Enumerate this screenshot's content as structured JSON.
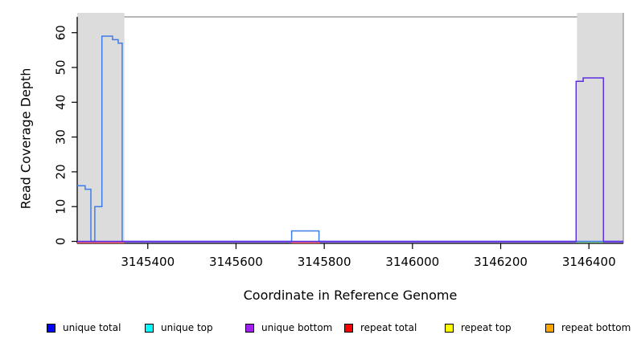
{
  "chart_data": {
    "type": "line",
    "step": true,
    "title": "",
    "xlabel": "Coordinate in Reference Genome",
    "ylabel": "Read Coverage Depth",
    "xlim": [
      3145240,
      3146478
    ],
    "ylim": [
      0,
      60
    ],
    "x_ticks": [
      3145400,
      3145600,
      3145800,
      3146000,
      3146200,
      3146400
    ],
    "y_ticks": [
      0,
      10,
      20,
      30,
      40,
      50,
      60
    ],
    "grid": false,
    "legend_position": "bottom",
    "highlight_regions": [
      {
        "name": "left-repeat-region",
        "x1": 3145240,
        "x2": 3145347,
        "color": "#dcdcdc"
      },
      {
        "name": "right-repeat-region",
        "x1": 3146373,
        "x2": 3146478,
        "color": "#dcdcdc"
      }
    ],
    "series": [
      {
        "name": "unique total",
        "legend_color": "#0000ff",
        "line_color": "#3e7ce8",
        "points": [
          [
            3145240,
            16
          ],
          [
            3145258,
            15
          ],
          [
            3145271,
            0
          ],
          [
            3145280,
            10
          ],
          [
            3145296,
            59
          ],
          [
            3145320,
            58
          ],
          [
            3145333,
            57
          ],
          [
            3145342,
            0
          ],
          [
            3145726,
            3
          ],
          [
            3145788,
            0
          ]
        ]
      },
      {
        "name": "unique top",
        "legend_color": "#00ffff",
        "line_color": "#00e5e5",
        "points": [
          [
            3145240,
            0
          ]
        ]
      },
      {
        "name": "unique bottom",
        "legend_color": "#a020f0",
        "line_color": "#5c2ee0",
        "points": [
          [
            3145240,
            0
          ],
          [
            3146371,
            46
          ],
          [
            3146387,
            47
          ],
          [
            3146433,
            0
          ]
        ]
      },
      {
        "name": "repeat total",
        "legend_color": "#ff0000",
        "line_color": "#f25050",
        "points": [
          [
            3145240,
            0
          ]
        ]
      },
      {
        "name": "repeat top",
        "legend_color": "#ffff00",
        "line_color": "#f5f500",
        "points": [
          [
            3145240,
            0
          ]
        ]
      },
      {
        "name": "repeat bottom",
        "legend_color": "#ffa500",
        "line_color": "#ffa500",
        "points": [
          [
            3145240,
            0
          ]
        ]
      }
    ],
    "baseline_overlays": [
      {
        "name": "unique-bottom-zero-line",
        "color": "#9570ee",
        "offset": 1.0,
        "segments": [
          [
            3145240,
            3146478
          ]
        ]
      },
      {
        "name": "repeat-total-zero-line",
        "color": "#f25050",
        "offset": 1.8,
        "segments": [
          [
            3145240,
            3145347
          ],
          [
            3145726,
            3145790
          ]
        ]
      },
      {
        "name": "mixed-strand-zero-line",
        "color": "#8fe08f",
        "offset": 1.3,
        "segments": [
          [
            3146371,
            3146433
          ]
        ]
      }
    ]
  },
  "legend": {
    "items": [
      {
        "label": "unique total",
        "color": "#0000ff"
      },
      {
        "label": "unique top",
        "color": "#00ffff"
      },
      {
        "label": "unique bottom",
        "color": "#a020f0"
      },
      {
        "label": "repeat total",
        "color": "#ff0000"
      },
      {
        "label": "repeat top",
        "color": "#ffff00"
      },
      {
        "label": "repeat bottom",
        "color": "#ffa500"
      }
    ]
  }
}
